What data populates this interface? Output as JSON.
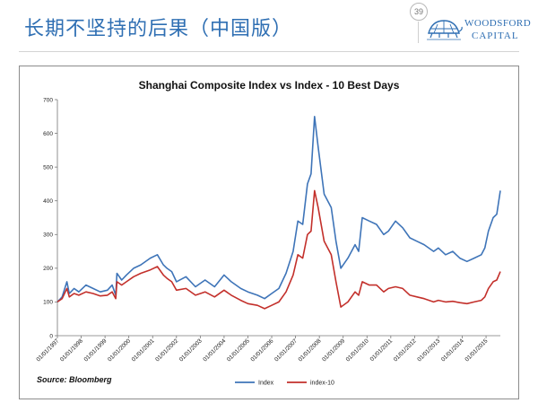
{
  "slide": {
    "title": "长期不坚持的后果（中国版）",
    "page_number": "39"
  },
  "logo": {
    "line1": "WOODSFORD",
    "line2": "CAPITAL"
  },
  "source": "Source: Bloomberg",
  "colors": {
    "title": "#2f6fb3",
    "index": "#3e74b8",
    "index10": "#c3302b"
  },
  "chart_data": {
    "type": "line",
    "title": "Shanghai Composite Index vs Index - 10 Best Days",
    "xlabel": "",
    "ylabel": "",
    "ylim": [
      0,
      700
    ],
    "yticks": [
      "0",
      "100",
      "200",
      "300",
      "400",
      "500",
      "600",
      "700"
    ],
    "grid": false,
    "legend_position": "bottom-center",
    "x_ticks": [
      "01/01/1997",
      "01/01/1998",
      "01/01/1999",
      "01/01/2000",
      "01/01/2001",
      "01/01/2002",
      "01/01/2003",
      "01/01/2004",
      "01/01/2005",
      "01/01/2006",
      "01/01/2007",
      "01/01/2008",
      "01/01/2009",
      "01/01/2010",
      "01/01/2011",
      "01/01/2012",
      "01/01/2013",
      "01/01/2014",
      "01/01/2015"
    ],
    "x_range": [
      1997.0,
      2015.6
    ],
    "series": [
      {
        "name": "Index",
        "color": "#3e74b8",
        "x": [
          1997.0,
          1997.2,
          1997.4,
          1997.5,
          1997.7,
          1997.9,
          1998.2,
          1998.5,
          1998.8,
          1999.1,
          1999.3,
          1999.45,
          1999.5,
          1999.7,
          1999.9,
          2000.2,
          2000.5,
          2000.9,
          2001.2,
          2001.45,
          2001.6,
          2001.8,
          2002.0,
          2002.4,
          2002.8,
          2003.2,
          2003.6,
          2004.0,
          2004.3,
          2004.7,
          2005.0,
          2005.4,
          2005.7,
          2006.0,
          2006.3,
          2006.6,
          2006.9,
          2007.1,
          2007.3,
          2007.5,
          2007.65,
          2007.8,
          2007.95,
          2008.2,
          2008.5,
          2008.7,
          2008.9,
          2009.2,
          2009.5,
          2009.65,
          2009.8,
          2010.1,
          2010.4,
          2010.7,
          2010.9,
          2011.2,
          2011.5,
          2011.8,
          2012.1,
          2012.4,
          2012.8,
          2013.0,
          2013.3,
          2013.6,
          2013.9,
          2014.2,
          2014.5,
          2014.8,
          2014.95,
          2015.1,
          2015.3,
          2015.45,
          2015.6
        ],
        "values": [
          100,
          115,
          160,
          125,
          140,
          130,
          150,
          140,
          130,
          135,
          150,
          120,
          185,
          165,
          180,
          200,
          210,
          230,
          240,
          210,
          200,
          190,
          160,
          175,
          145,
          165,
          145,
          180,
          160,
          140,
          130,
          120,
          110,
          125,
          140,
          185,
          250,
          340,
          330,
          450,
          480,
          650,
          560,
          420,
          380,
          280,
          200,
          230,
          270,
          250,
          350,
          340,
          330,
          300,
          310,
          340,
          320,
          290,
          280,
          270,
          250,
          260,
          240,
          250,
          230,
          220,
          230,
          240,
          260,
          310,
          350,
          360,
          430
        ]
      },
      {
        "name": "index-10",
        "color": "#c3302b",
        "x": [
          1997.0,
          1997.2,
          1997.4,
          1997.5,
          1997.7,
          1997.9,
          1998.2,
          1998.5,
          1998.8,
          1999.1,
          1999.3,
          1999.45,
          1999.5,
          1999.7,
          1999.9,
          2000.2,
          2000.5,
          2000.9,
          2001.2,
          2001.45,
          2001.6,
          2001.8,
          2002.0,
          2002.4,
          2002.8,
          2003.2,
          2003.6,
          2004.0,
          2004.3,
          2004.7,
          2005.0,
          2005.4,
          2005.7,
          2006.0,
          2006.3,
          2006.6,
          2006.9,
          2007.1,
          2007.3,
          2007.5,
          2007.65,
          2007.8,
          2007.95,
          2008.2,
          2008.5,
          2008.7,
          2008.9,
          2009.2,
          2009.5,
          2009.65,
          2009.8,
          2010.1,
          2010.4,
          2010.7,
          2010.9,
          2011.2,
          2011.5,
          2011.8,
          2012.1,
          2012.4,
          2012.8,
          2013.0,
          2013.3,
          2013.6,
          2013.9,
          2014.2,
          2014.5,
          2014.8,
          2014.95,
          2015.1,
          2015.3,
          2015.45,
          2015.6
        ],
        "values": [
          100,
          110,
          140,
          115,
          125,
          120,
          130,
          125,
          118,
          120,
          130,
          110,
          160,
          150,
          160,
          175,
          185,
          195,
          205,
          180,
          170,
          160,
          135,
          140,
          120,
          130,
          115,
          135,
          120,
          105,
          95,
          90,
          80,
          90,
          100,
          130,
          180,
          240,
          230,
          300,
          310,
          430,
          380,
          280,
          240,
          160,
          85,
          100,
          130,
          120,
          160,
          150,
          150,
          130,
          140,
          145,
          140,
          120,
          115,
          110,
          100,
          105,
          100,
          102,
          98,
          95,
          100,
          105,
          115,
          140,
          160,
          165,
          190
        ]
      }
    ]
  }
}
